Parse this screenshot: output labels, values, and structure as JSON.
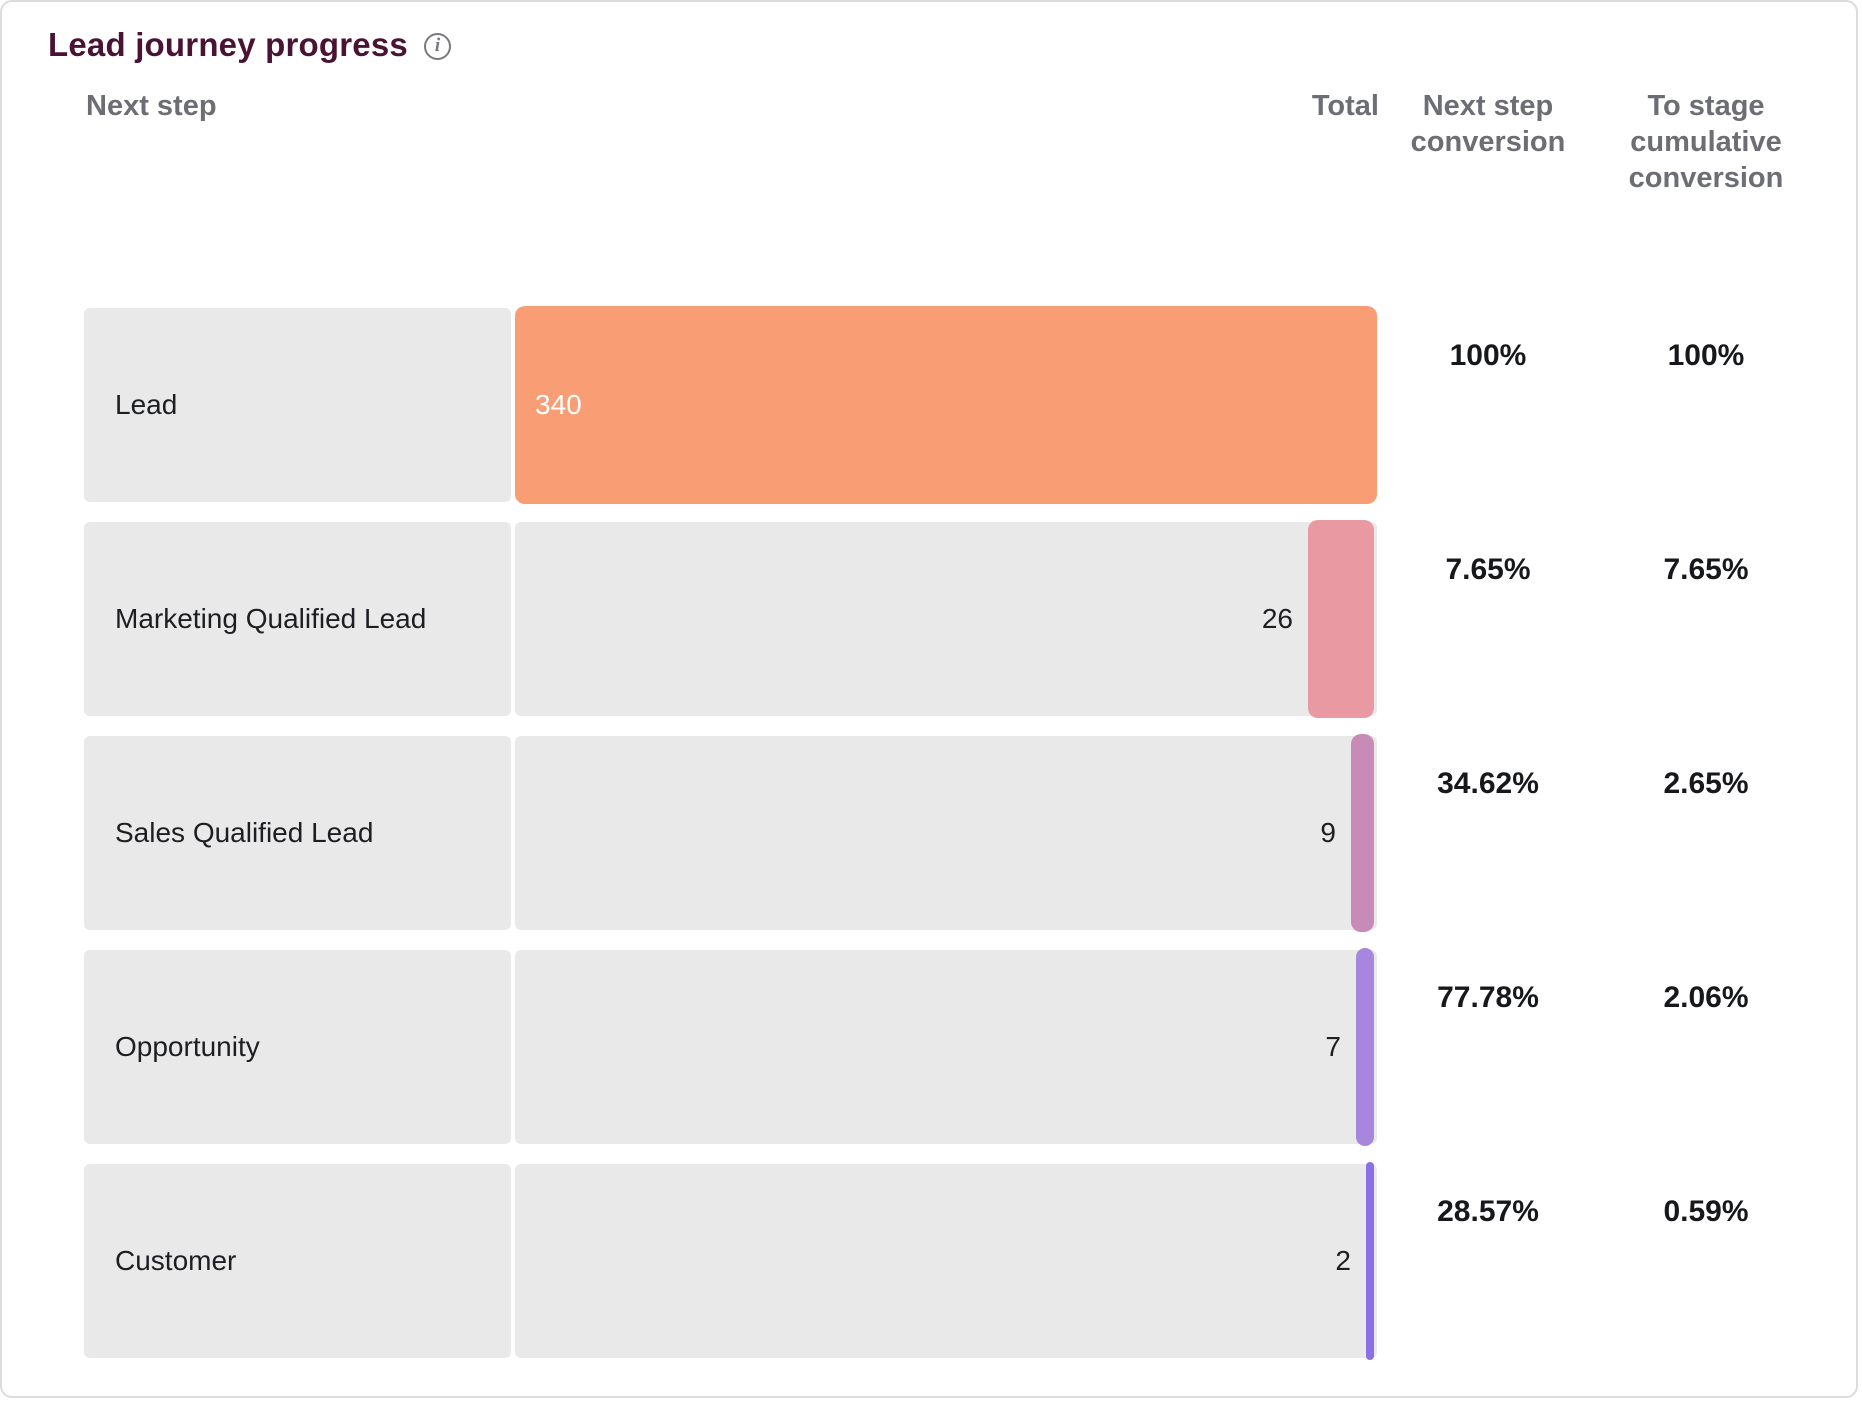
{
  "title": "Lead journey progress",
  "info_icon": "info-icon",
  "columns": {
    "next_step": "Next step",
    "total": "Total",
    "next_step_conversion": "Next step conversion",
    "to_stage_cumulative": "To stage cumulative conversion"
  },
  "colors": {
    "title_text": "#4a1233",
    "header_text": "#6c6e74",
    "track": "#e9e9e9",
    "value_text": "#1d1e22",
    "card_border": "#dcdcdc"
  },
  "chart_data": {
    "type": "bar",
    "orientation": "horizontal",
    "title": "Lead journey progress",
    "categories": [
      "Lead",
      "Marketing Qualified Lead",
      "Sales Qualified Lead",
      "Opportunity",
      "Customer"
    ],
    "series": [
      {
        "name": "Total",
        "values": [
          340,
          26,
          9,
          7,
          2
        ]
      },
      {
        "name": "Next step conversion",
        "values": [
          "100%",
          "7.65%",
          "34.62%",
          "77.78%",
          "28.57%"
        ]
      },
      {
        "name": "To stage cumulative conversion",
        "values": [
          "100%",
          "7.65%",
          "2.65%",
          "2.06%",
          "0.59%"
        ]
      }
    ],
    "bar_colors": [
      "#f99d74",
      "#e899a2",
      "#c88ab6",
      "#a687dd",
      "#8a70e6"
    ],
    "bar_scale_max": 340,
    "bars_right_aligned": true,
    "legend_position": "none",
    "grid": false
  }
}
